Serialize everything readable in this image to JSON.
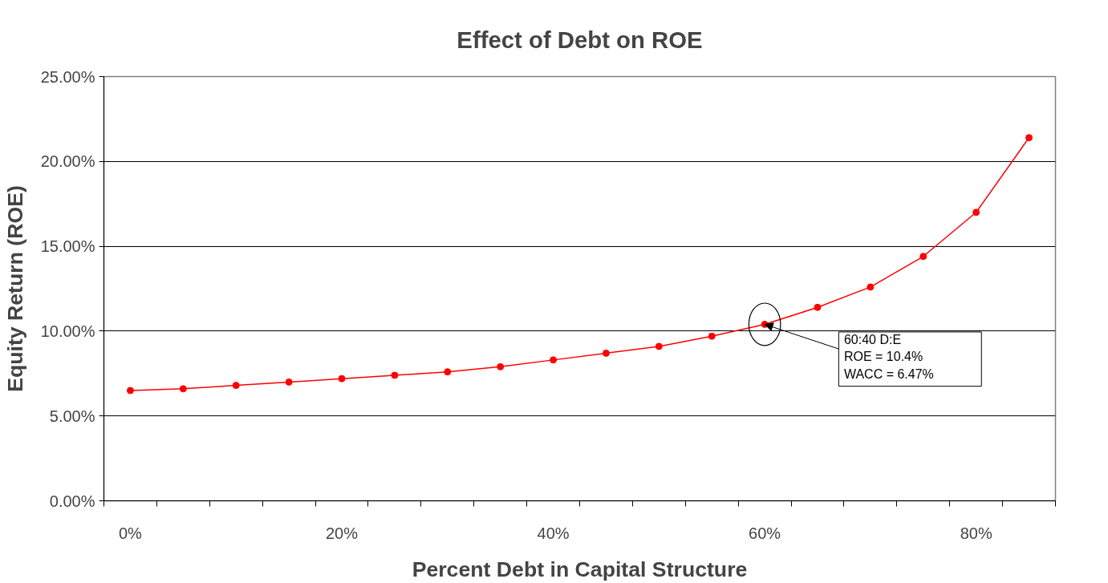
{
  "chart_data": {
    "type": "line",
    "title": "Effect of Debt on ROE",
    "xlabel": "Percent Debt in Capital Structure",
    "ylabel": "Equity Return (ROE)",
    "categories": [
      "0%",
      null,
      null,
      null,
      "20%",
      null,
      null,
      null,
      "40%",
      null,
      null,
      null,
      "60%",
      null,
      null,
      null,
      "80%",
      null
    ],
    "series": [
      {
        "color": "#ff0000",
        "values": [
          0.065,
          0.066,
          0.068,
          0.07,
          0.072,
          0.074,
          0.076,
          0.079,
          0.083,
          0.087,
          0.091,
          0.097,
          0.104,
          0.114,
          0.126,
          0.144,
          0.17,
          0.214
        ]
      }
    ],
    "ylim": [
      0,
      0.25
    ],
    "yticks": [
      {
        "value": 0,
        "label": "0.00%"
      },
      {
        "value": 0.05,
        "label": "5.00%"
      },
      {
        "value": 0.1,
        "label": "10.00%"
      },
      {
        "value": 0.15,
        "label": "15.00%"
      },
      {
        "value": 0.2,
        "label": "20.00%"
      },
      {
        "value": 0.25,
        "label": "25.00%"
      }
    ],
    "grid": "y",
    "marker": "circle",
    "line_style": "solid",
    "annotations": [
      {
        "text": "60:40 D:E\nROE = 10.4%\nWACC = 6.47%",
        "x": "60%",
        "y": 0.104
      }
    ]
  }
}
